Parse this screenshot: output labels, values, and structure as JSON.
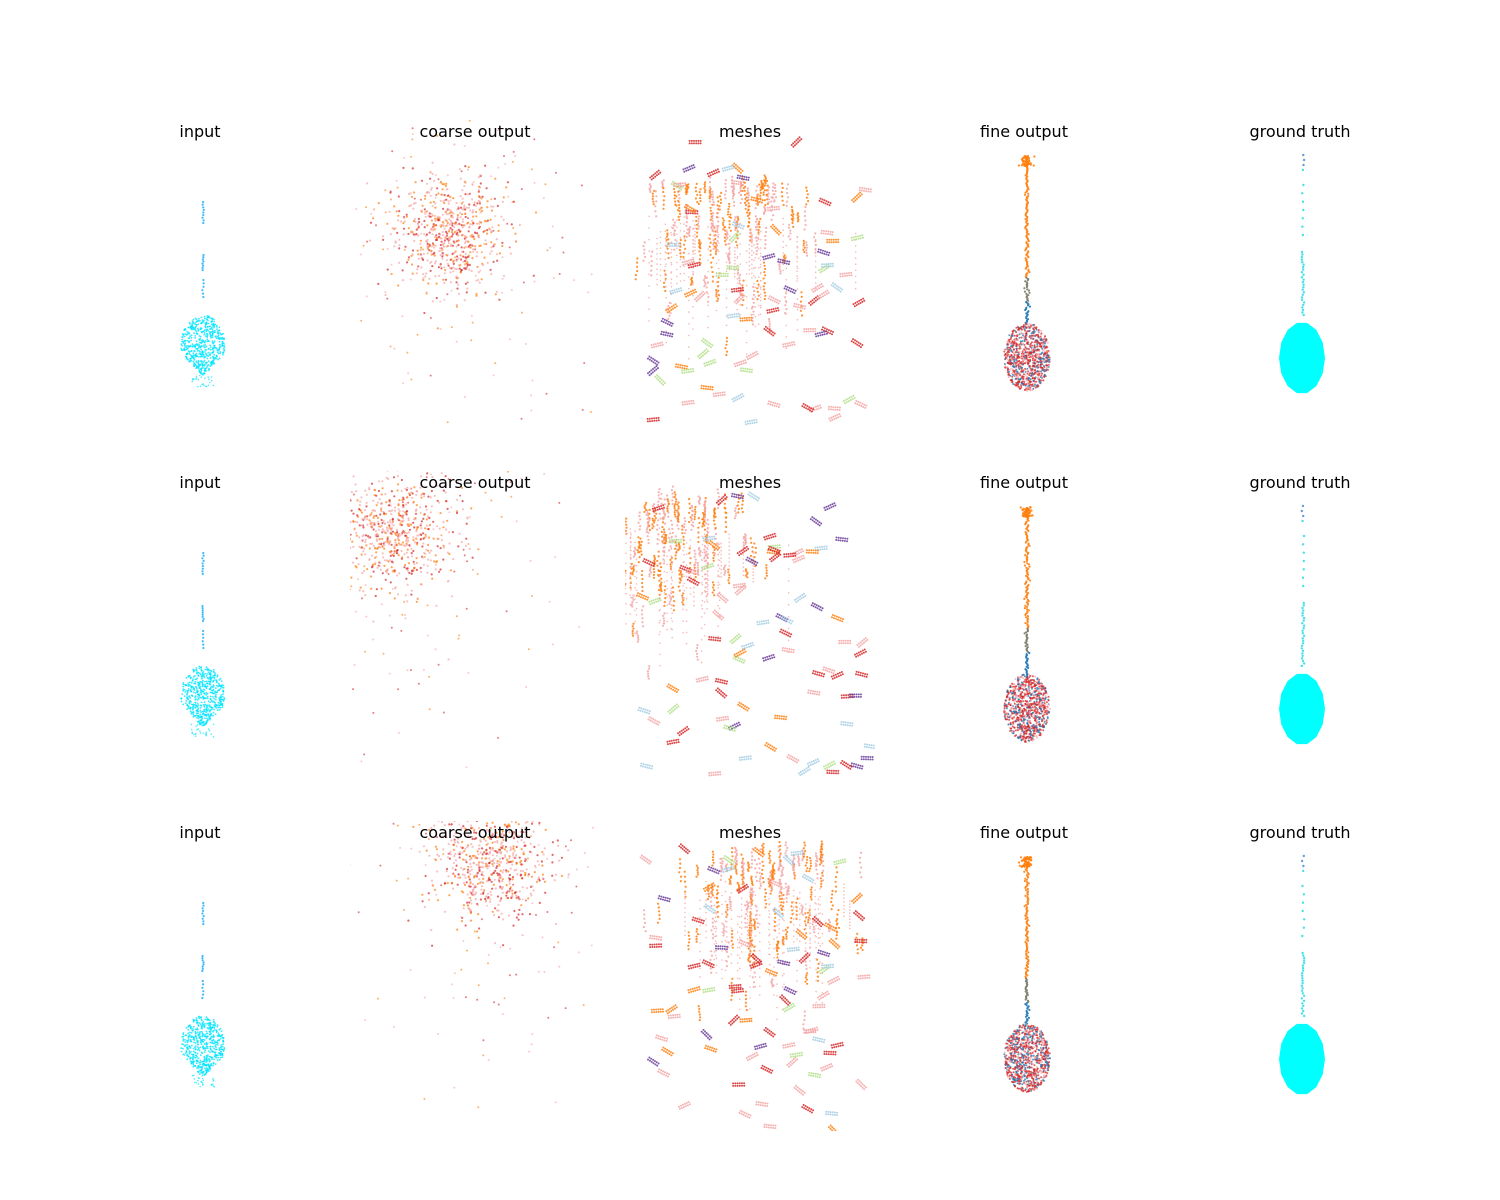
{
  "figure": {
    "rows": [
      {
        "panels": [
          {
            "title": "input",
            "kind": "input"
          },
          {
            "title": "coarse output",
            "kind": "coarse",
            "cluster": "upper-left-center"
          },
          {
            "title": "meshes",
            "kind": "meshes",
            "cluster": "top-center"
          },
          {
            "title": "fine output",
            "kind": "fine"
          },
          {
            "title": "ground truth",
            "kind": "truth"
          }
        ]
      },
      {
        "panels": [
          {
            "title": "input",
            "kind": "input"
          },
          {
            "title": "coarse output",
            "kind": "coarse",
            "cluster": "top-left"
          },
          {
            "title": "meshes",
            "kind": "meshes",
            "cluster": "top-left"
          },
          {
            "title": "fine output",
            "kind": "fine"
          },
          {
            "title": "ground truth",
            "kind": "truth"
          }
        ]
      },
      {
        "panels": [
          {
            "title": "input",
            "kind": "input"
          },
          {
            "title": "coarse output",
            "kind": "coarse",
            "cluster": "top-right"
          },
          {
            "title": "meshes",
            "kind": "meshes",
            "cluster": "top-right"
          },
          {
            "title": "fine output",
            "kind": "fine"
          },
          {
            "title": "ground truth",
            "kind": "truth"
          }
        ]
      }
    ]
  },
  "chart_data": {
    "type": "scatter",
    "description_free": true,
    "grid": false,
    "axes_visible": false,
    "columns": [
      "input",
      "coarse output",
      "meshes",
      "fine output",
      "ground truth"
    ],
    "n_rows": 3,
    "colors": {
      "input": "#00e5ff",
      "input_stem": "#29b6f6",
      "truth": "#00ffff",
      "coarse_primary": "#ff7f0e",
      "coarse_secondary": "#f4a6a6",
      "coarse_tertiary": "#d62728",
      "mesh_orange": "#ff7f0e",
      "mesh_pink": "#f4a6a6",
      "mesh_red": "#d62728",
      "mesh_purple": "#6a3d9a",
      "mesh_lightblue": "#a6cee3",
      "mesh_lightgreen": "#b2df8a",
      "mesh_yellow": "#ffff99",
      "fine_stem_top": "#ff7f0e",
      "fine_body_blue": "#1f77b4",
      "fine_body_red": "#d62728",
      "fine_body_pink": "#f4a6a6"
    }
  }
}
